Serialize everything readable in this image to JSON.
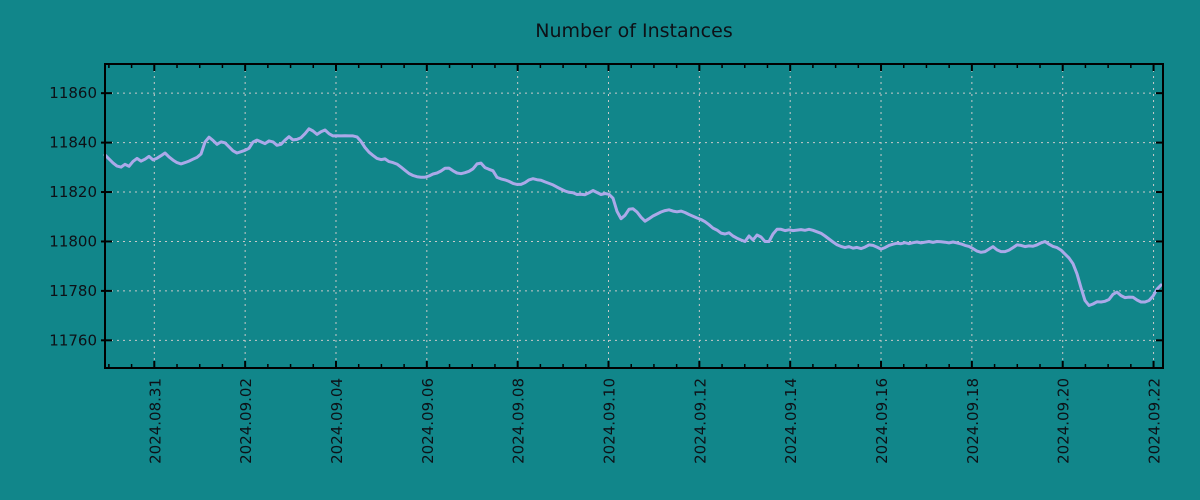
{
  "chart_data": {
    "type": "line",
    "title": "Number of Instances",
    "xlabel": "",
    "ylabel": "",
    "legend": {
      "visible": false
    },
    "grid": {
      "visible": true,
      "style": "dashed"
    },
    "x_axis": {
      "tick_labels": [
        "2024.08.31",
        "2024.09.02",
        "2024.09.04",
        "2024.09.06",
        "2024.09.08",
        "2024.09.10",
        "2024.09.12",
        "2024.09.14",
        "2024.09.16",
        "2024.09.18",
        "2024.09.20",
        "2024.09.22"
      ],
      "tick_days": [
        0,
        2,
        4,
        6,
        8,
        10,
        12,
        14,
        16,
        18,
        20,
        22
      ],
      "minor_tick_step_days": 0.5,
      "lim_days": [
        -1.0855,
        22.208
      ],
      "label_rotation_deg": 90
    },
    "y_axis": {
      "ticks": [
        11760,
        11780,
        11800,
        11820,
        11840,
        11860
      ],
      "lim": [
        11748.8,
        11871.8
      ]
    },
    "colors": {
      "background": "#11868a",
      "line": "#ABA9E9",
      "grid": "#C9C9C9",
      "axis": "#000000",
      "text": "#0d1117"
    },
    "series": [
      {
        "name": "instances",
        "x_start_day": -1.0855,
        "x_step_day": 0.08807,
        "values": [
          11835.0,
          11833.4,
          11831.8,
          11830.5,
          11830.1,
          11831.2,
          11830.4,
          11832.4,
          11833.6,
          11832.5,
          11833.3,
          11834.4,
          11833.0,
          11833.7,
          11834.7,
          11835.8,
          11834.2,
          11832.9,
          11831.9,
          11831.4,
          11831.9,
          11832.5,
          11833.3,
          11834.0,
          11835.4,
          11840.2,
          11842.2,
          11840.9,
          11839.3,
          11840.3,
          11839.9,
          11838.3,
          11836.7,
          11835.8,
          11836.3,
          11836.9,
          11837.7,
          11840.2,
          11841.0,
          11840.3,
          11839.6,
          11840.7,
          11840.3,
          11838.9,
          11839.3,
          11841.0,
          11842.4,
          11841.1,
          11841.3,
          11842.0,
          11843.6,
          11845.6,
          11844.7,
          11843.3,
          11844.4,
          11845.1,
          11843.6,
          11842.7,
          11842.8,
          11842.7,
          11842.8,
          11842.7,
          11842.7,
          11842.3,
          11840.5,
          11838.0,
          11836.1,
          11834.8,
          11833.6,
          11833.1,
          11833.4,
          11832.3,
          11831.9,
          11831.3,
          11830.1,
          11828.8,
          11827.5,
          11826.7,
          11826.2,
          11826.0,
          11826.0,
          11826.5,
          11827.3,
          11827.7,
          11828.5,
          11829.6,
          11829.7,
          11828.6,
          11827.7,
          11827.4,
          11827.8,
          11828.4,
          11829.4,
          11831.4,
          11831.7,
          11829.9,
          11829.2,
          11828.6,
          11825.9,
          11825.3,
          11824.9,
          11824.3,
          11823.5,
          11823.1,
          11823.1,
          11823.8,
          11824.9,
          11825.4,
          11825.0,
          11824.8,
          11824.1,
          11823.5,
          11822.9,
          11822.0,
          11821.2,
          11820.4,
          11819.9,
          11819.7,
          11819.0,
          11819.1,
          11818.9,
          11819.7,
          11820.6,
          11819.8,
          11819.0,
          11819.4,
          11819.1,
          11817.5,
          11812.2,
          11809.2,
          11810.6,
          11813.0,
          11813.2,
          11811.9,
          11809.8,
          11808.2,
          11809.2,
          11810.3,
          11811.1,
          11811.9,
          11812.5,
          11812.8,
          11812.3,
          11812.0,
          11812.3,
          11811.7,
          11810.9,
          11810.2,
          11809.5,
          11808.9,
          11808.0,
          11806.8,
          11805.4,
          11804.6,
          11803.4,
          11803.0,
          11803.5,
          11802.2,
          11801.3,
          11800.6,
          11800.0,
          11802.2,
          11800.6,
          11802.6,
          11801.8,
          11800.0,
          11800.0,
          11803.0,
          11804.9,
          11804.9,
          11804.4,
          11804.7,
          11804.4,
          11804.6,
          11804.8,
          11804.5,
          11804.9,
          11804.5,
          11803.9,
          11803.3,
          11802.2,
          11801.0,
          11799.8,
          11798.7,
          11798.0,
          11797.5,
          11797.9,
          11797.3,
          11797.6,
          11797.1,
          11797.7,
          11798.6,
          11798.4,
          11797.7,
          11796.9,
          11797.5,
          11798.4,
          11798.9,
          11799.3,
          11799.1,
          11799.5,
          11799.1,
          11799.5,
          11799.8,
          11799.4,
          11799.7,
          11800.0,
          11799.6,
          11800.0,
          11799.9,
          11799.7,
          11799.4,
          11799.8,
          11799.4,
          11799.0,
          11798.4,
          11798.0,
          11797.1,
          11796.1,
          11795.6,
          11795.9,
          11796.9,
          11797.9,
          11796.6,
          11795.9,
          11795.9,
          11796.5,
          11797.5,
          11798.6,
          11798.4,
          11797.9,
          11798.2,
          11798.1,
          11798.6,
          11799.4,
          11800.0,
          11798.9,
          11798.0,
          11797.5,
          11796.5,
          11794.9,
          11793.3,
          11791.0,
          11786.9,
          11781.3,
          11776.1,
          11774.1,
          11774.7,
          11775.6,
          11775.5,
          11775.8,
          11776.5,
          11778.6,
          11779.5,
          11778.1,
          11777.3,
          11777.5,
          11777.4,
          11776.3,
          11775.5,
          11775.5,
          11776.1,
          11777.9,
          11780.7,
          11782.4
        ]
      }
    ]
  }
}
